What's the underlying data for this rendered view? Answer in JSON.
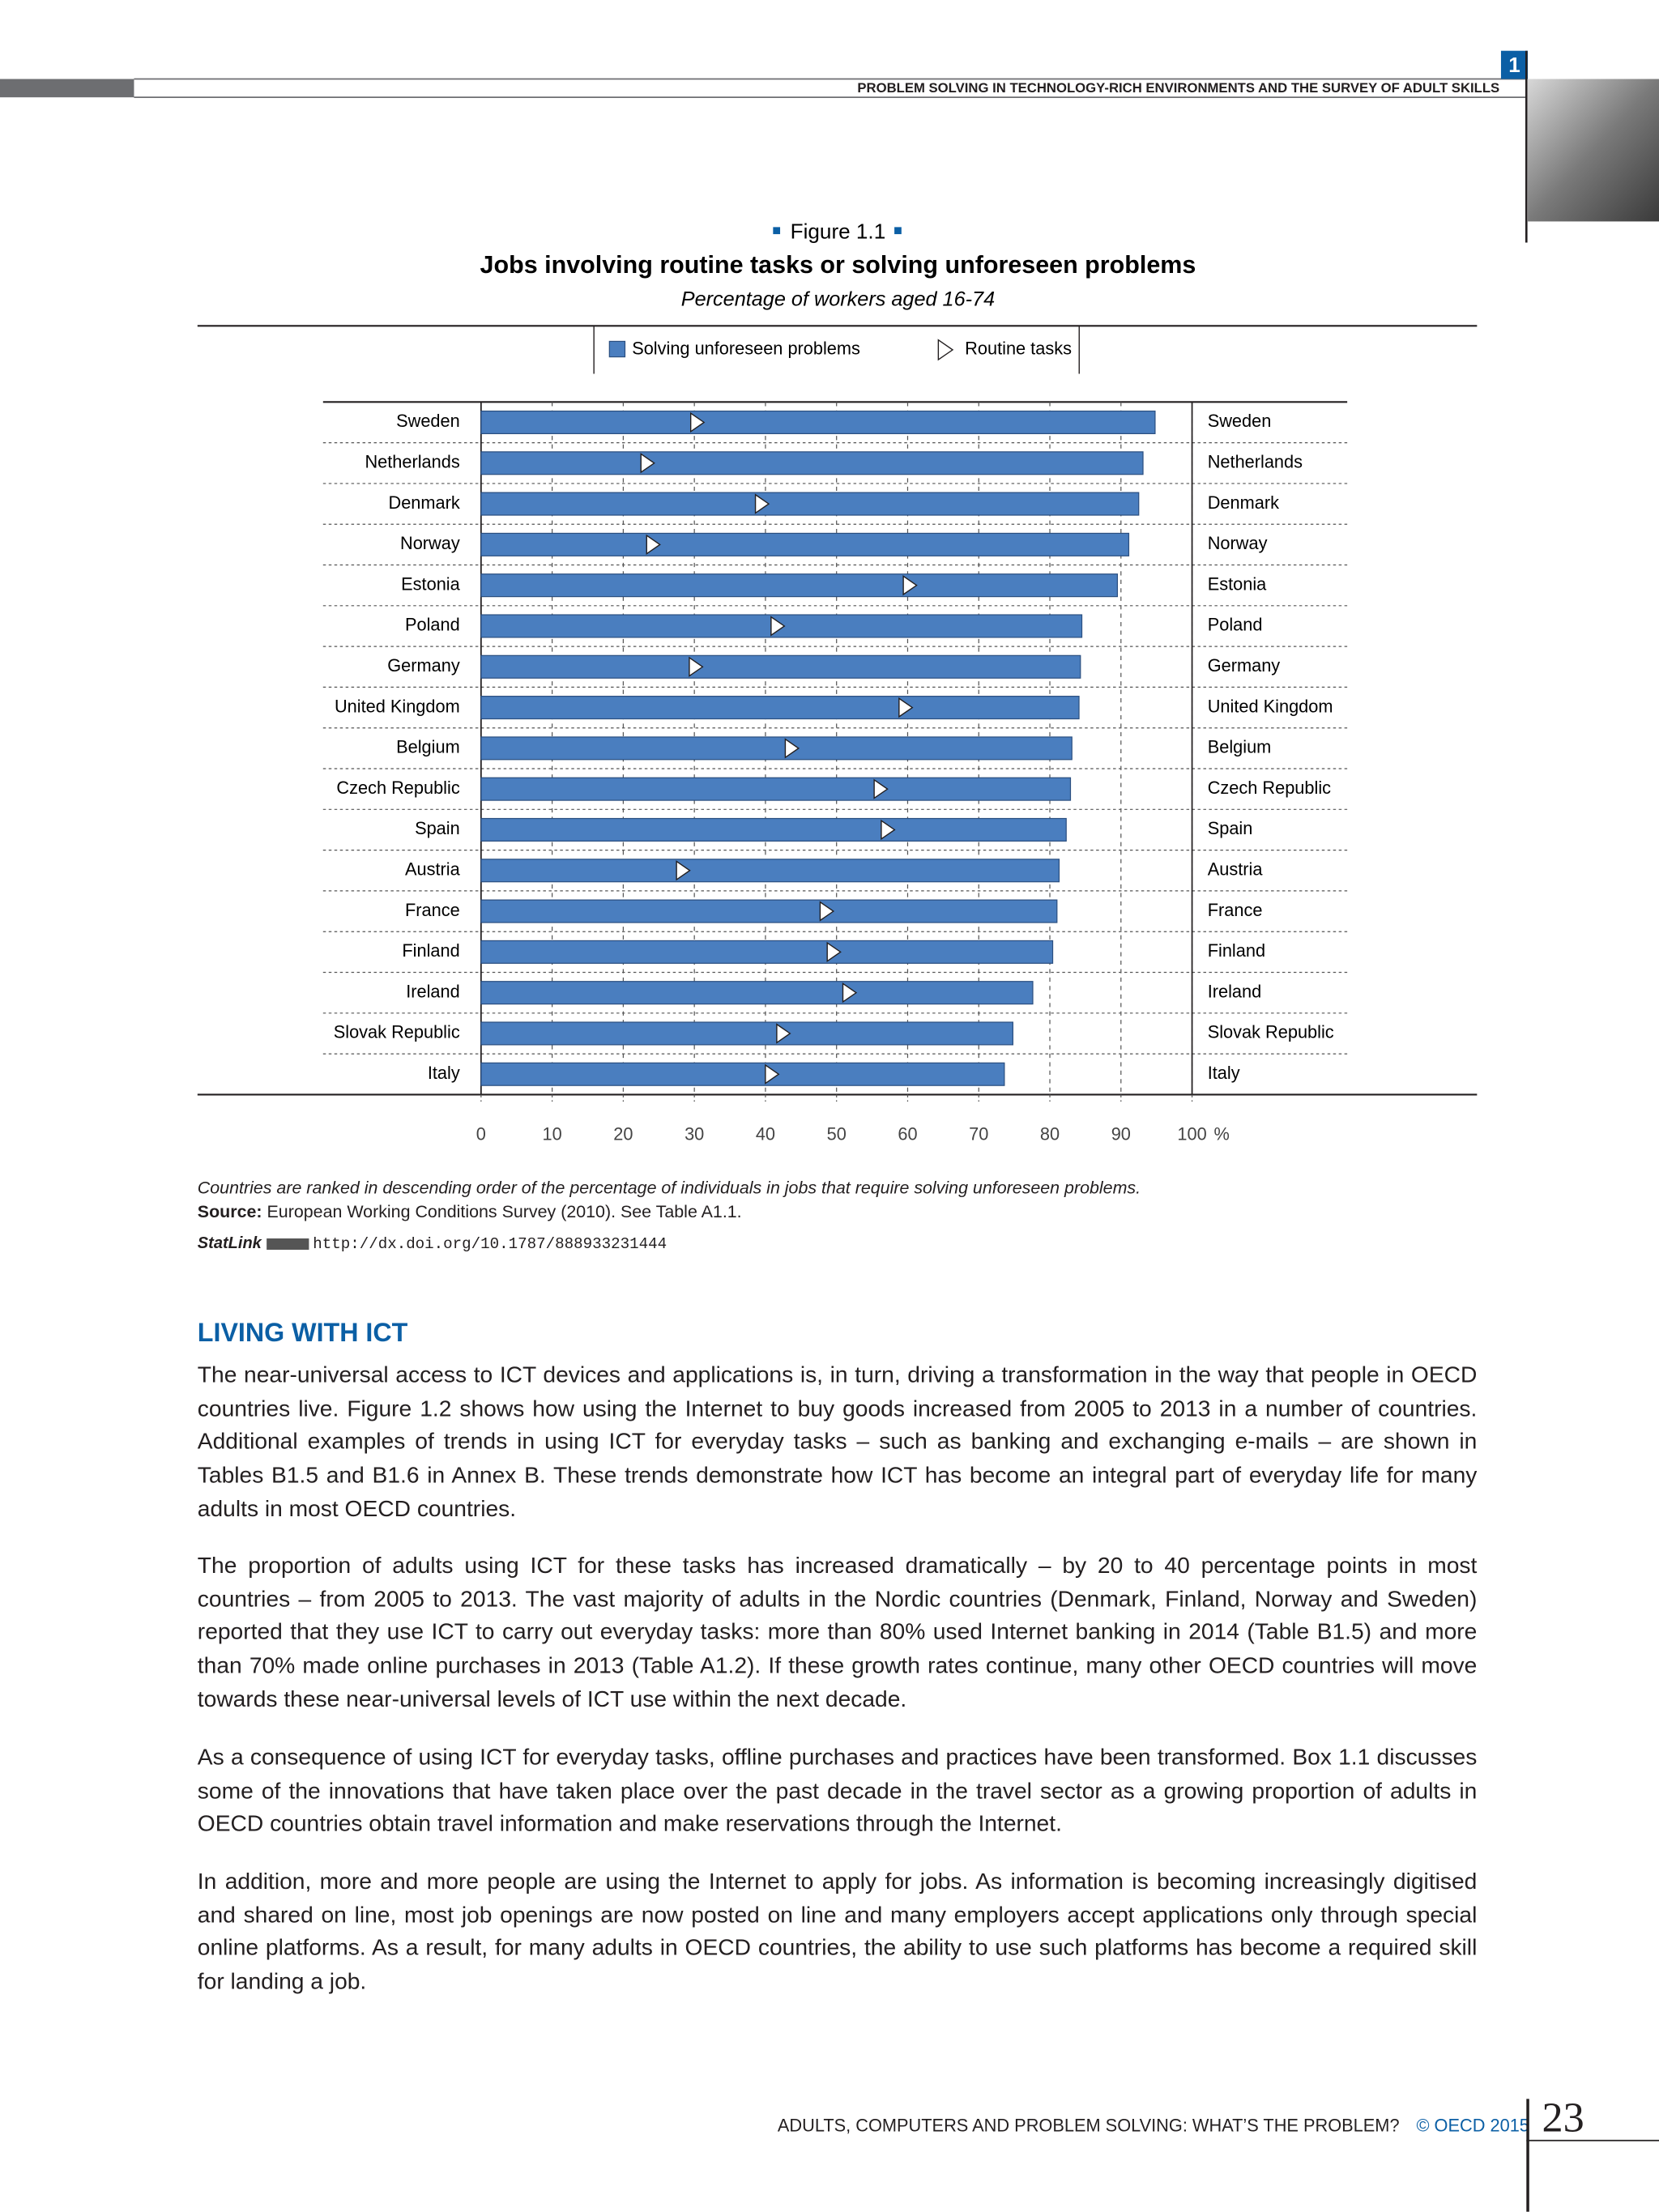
{
  "header": {
    "chapter_number": "1",
    "running_title": "PROBLEM SOLVING IN TECHNOLOGY-RICH ENVIRONMENTS AND THE SURVEY OF ADULT SKILLS"
  },
  "chart_data": {
    "type": "bar",
    "label": "Figure 1.1",
    "title": "Jobs involving routine tasks or solving unforeseen problems",
    "subtitle": "Percentage of workers aged 16-74",
    "orientation": "horizontal",
    "categories": [
      "Sweden",
      "Netherlands",
      "Denmark",
      "Norway",
      "Estonia",
      "Poland",
      "Germany",
      "United Kingdom",
      "Belgium",
      "Czech Republic",
      "Spain",
      "Austria",
      "France",
      "Finland",
      "Ireland",
      "Slovak Republic",
      "Italy"
    ],
    "series": [
      {
        "name": "Solving unforeseen problems",
        "mark": "bar",
        "color": "#4a7ebf",
        "values": [
          94.8,
          93.1,
          92.5,
          91.1,
          89.5,
          84.5,
          84.3,
          84.1,
          83.1,
          82.9,
          82.3,
          81.3,
          81.0,
          80.4,
          77.6,
          74.8,
          73.6
        ]
      },
      {
        "name": "Routine tasks",
        "mark": "triangle",
        "color": "#ffffff",
        "values": [
          30.2,
          23.2,
          39.3,
          24.0,
          60.1,
          41.5,
          30.0,
          59.5,
          43.5,
          56.0,
          57.0,
          28.2,
          48.4,
          49.4,
          51.6,
          42.3,
          40.7
        ]
      }
    ],
    "xlim": [
      0,
      100
    ],
    "xticks": [
      0,
      10,
      20,
      30,
      40,
      50,
      60,
      70,
      80,
      90,
      100
    ],
    "xlabel": "%",
    "grid": true
  },
  "figure_notes": {
    "note": "Countries are ranked in descending order of the percentage of individuals in jobs that require solving unforeseen problems.",
    "source_label": "Source:",
    "source_text": "European Working Conditions Survey (2010). See Table A1.1.",
    "statlink_label": "StatLink",
    "statlink_url": "http://dx.doi.org/10.1787/888933231444"
  },
  "section": {
    "heading": "LIVING WITH ICT",
    "paragraphs": [
      "The near-universal access to ICT devices and applications is, in turn, driving a transformation in the way that people in OECD countries live. Figure 1.2 shows how using the Internet to buy goods increased from 2005 to 2013 in a number of countries. Additional examples of trends in using ICT for everyday tasks – such as banking and exchanging e-mails – are shown in Tables B1.5 and B1.6 in Annex B. These trends demonstrate how ICT has become an integral part of everyday life for many adults in most OECD countries.",
      "The proportion of adults using ICT for these tasks has increased dramatically – by 20 to 40 percentage points in most countries – from 2005 to 2013. The vast majority of adults in the Nordic countries (Denmark, Finland, Norway and Sweden) reported that they use ICT to carry out everyday tasks: more than 80% used Internet banking in 2014 (Table B1.5) and more than 70% made online purchases in 2013 (Table A1.2). If these growth rates continue, many other OECD countries will move towards these near-universal levels of ICT use within the next decade.",
      "As a consequence of using ICT for everyday tasks, offline purchases and practices have been transformed. Box 1.1 discusses some of the innovations that have taken place over the past decade in the travel sector as a growing proportion of adults in OECD countries obtain travel information and make reservations through the Internet.",
      "In addition, more and more people are using the Internet to apply for jobs. As information is becoming increasingly digitised and shared on line, most job openings are now posted on line and many employers accept applications only through special online platforms. As a result, for many adults in OECD countries, the ability to use such platforms has become a required skill for landing a job."
    ]
  },
  "footer": {
    "book_title": "ADULTS, COMPUTERS AND PROBLEM SOLVING: WHAT’S THE PROBLEM?",
    "copyright": "© OECD 2015",
    "page_number": "23"
  }
}
